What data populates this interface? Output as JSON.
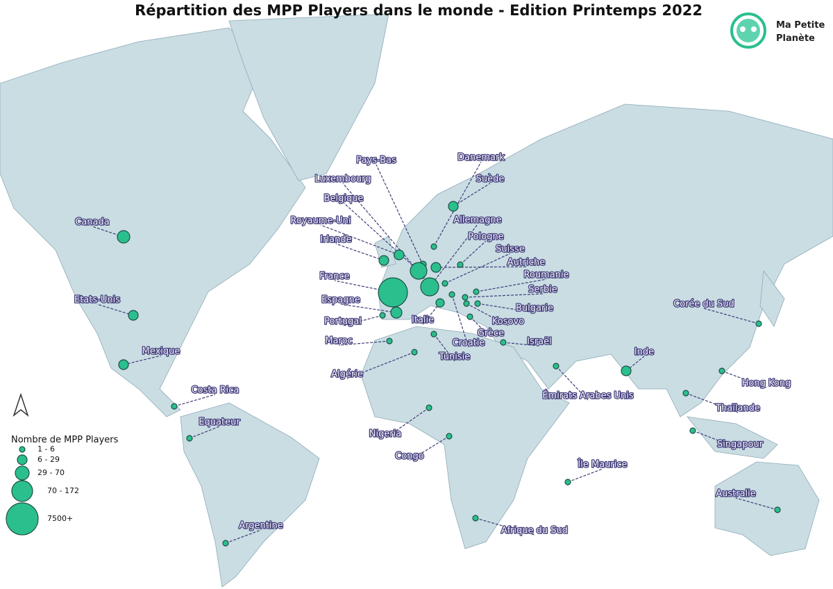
{
  "title": "Répartition des MPP Players dans le monde - Edition Printemps 2022",
  "logo": [
    "Ma Petite",
    "Planète"
  ],
  "legend": {
    "title": "Nombre de MPP Players",
    "classes": [
      "1 - 6",
      "6 - 29",
      "29 - 70",
      "70 - 172",
      "7500+"
    ]
  },
  "countries": [
    "Canada",
    "Etats-Unis",
    "Mexique",
    "Costa Rica",
    "Equateur",
    "Argentine",
    "Pays-Bas",
    "Luxembourg",
    "Belgique",
    "Royaume-Uni",
    "Irlande",
    "France",
    "Espagne",
    "Portugal",
    "Maroc",
    "Algérie",
    "Tunisie",
    "Italie",
    "Croatie",
    "Danemark",
    "Suède",
    "Allemagne",
    "Pologne",
    "Suisse",
    "Autriche",
    "Roumanie",
    "Serbie",
    "Bulgarie",
    "Kosovo",
    "Grèce",
    "Israël",
    "Émirats Arabes Unis",
    "Inde",
    "Corée du Sud",
    "Hong Kong",
    "Thaïlande",
    "Singapour",
    "Île Maurice",
    "Australie",
    "Nigeria",
    "Congo",
    "Afrique du Sud"
  ]
}
